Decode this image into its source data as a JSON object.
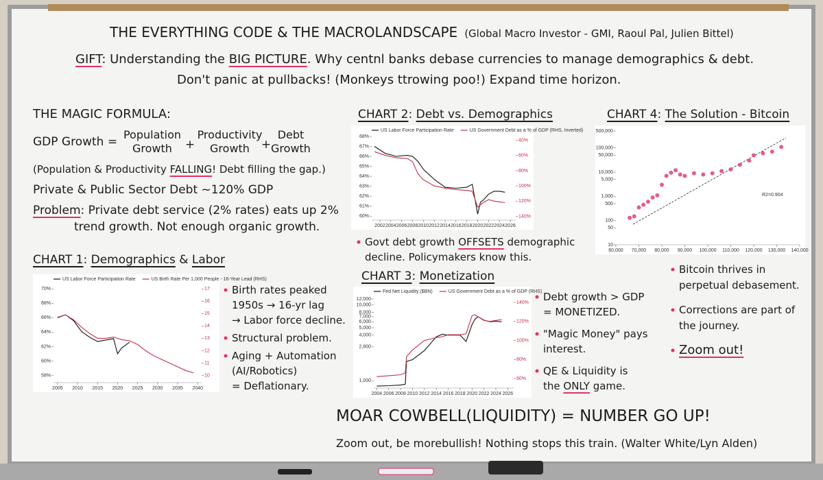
{
  "header": {
    "title": "THE EVERYTHING CODE & THE MACROLANDSCAPE",
    "credit": "(Global Macro Investor - GMI, Raoul Pal, Julien Bittel)",
    "gift": [
      "GIFT",
      ": Understanding the ",
      "BIG PICTURE",
      ". Why centnl banks debase currencies to manage demographics & debt."
    ],
    "line2": "Don't panic at pullbacks! (Monkeys ttrowing poo!) Expand time horizon."
  },
  "magic_formula": {
    "heading": "THE MAGIC FORMULA:",
    "lhs": "GDP Growth =",
    "terms": [
      [
        "Population",
        "Growth"
      ],
      [
        "Productivity",
        "Growth"
      ],
      [
        "Debt",
        "Growth"
      ]
    ],
    "operators": [
      "+",
      "+"
    ],
    "note": [
      "(Population & Productivity ",
      "FALLING",
      "! Debt filling the gap.)"
    ],
    "debt": "Private & Public Sector Debt ~120% GDP",
    "problem": {
      "line1": [
        "Problem",
        ": Private debt service (2% rates) eats up 2%"
      ],
      "line2": "trend growth. Not enough organic growth."
    }
  },
  "sections": [
    {
      "heading": [
        "CHART 1",
        ": ",
        "Demographics",
        " & ",
        "Labor"
      ],
      "bullets": [
        [
          [
            "Birth rates peaked"
          ],
          [
            "1950s → 16-yr lag"
          ],
          [
            "→ Labor force decline."
          ]
        ],
        [
          [
            "Structural problem."
          ]
        ],
        [
          [
            "Aging + Automation"
          ],
          [
            "(AI/Robotics)"
          ],
          [
            "= Deflationary."
          ]
        ]
      ]
    },
    {
      "heading": [
        "CHART 2",
        ": ",
        "Debt vs. Demographics"
      ],
      "bullets": [
        [
          [
            "Govt debt growth ",
            "OFFSETS",
            " demographic"
          ],
          [
            "decline. Policymakers know this."
          ]
        ]
      ]
    },
    {
      "heading": [
        "CHART 3",
        ": ",
        "Monetization"
      ],
      "bullets": [
        [
          [
            "Debt growth > GDP"
          ],
          [
            "= MONETIZED."
          ]
        ],
        [
          [
            "\"Magic Money\" pays"
          ],
          [
            "interest."
          ]
        ],
        [
          [
            "QE & Liquidity is"
          ],
          [
            "the ",
            "ONLY",
            " game."
          ]
        ]
      ]
    },
    {
      "heading": [
        "CHART 4",
        ": ",
        "The Solution - Bitcoin"
      ],
      "bullets": [
        [
          [
            "Bitcoin thrives in"
          ],
          [
            "perpetual debasement."
          ]
        ],
        [
          [
            "Corrections are part of"
          ],
          [
            "the journey."
          ]
        ],
        [
          [
            "Zoom out!"
          ]
        ]
      ]
    }
  ],
  "footer": {
    "headline": "MOAR COWBELL(LIQUIDITY) = NUMBER GO UP!",
    "line": "Zoom out, be morebullish! Nothing stops this train. (Walter White/Lyn Alden)"
  },
  "chart_data": [
    {
      "type": "line",
      "x": [
        2005,
        2007,
        2009,
        2011,
        2013,
        2015,
        2017,
        2019,
        2020,
        2021,
        2023,
        2025,
        2027,
        2029,
        2031,
        2033,
        2035,
        2037,
        2039
      ],
      "series": [
        {
          "name": "US Labor Force Participation Rate",
          "color": "#111111",
          "values": [
            66.0,
            66.4,
            65.6,
            64.1,
            63.3,
            62.7,
            62.9,
            63.1,
            61.0,
            61.8,
            62.6,
            null,
            null,
            null,
            null,
            null,
            null,
            null,
            null
          ]
        },
        {
          "name": "US Birth Rate Per 1,000 People - 16-Year Lead (RHS)",
          "color": "#c0304a",
          "axis": "y2",
          "values": [
            14.7,
            14.9,
            14.5,
            13.9,
            13.4,
            13.0,
            13.0,
            13.1,
            13.0,
            12.9,
            12.8,
            12.5,
            12.0,
            11.6,
            11.3,
            11.0,
            10.7,
            10.4,
            10.2
          ]
        }
      ],
      "xlim": [
        2004,
        2041
      ],
      "xticks": [
        2005,
        2010,
        2015,
        2020,
        2025,
        2030,
        2035,
        2040
      ],
      "ylim": [
        57,
        70.5
      ],
      "yticks": [
        {
          "value": 58,
          "label": "58%"
        },
        {
          "value": 60,
          "label": "60%"
        },
        {
          "value": 62,
          "label": "62%"
        },
        {
          "value": 64,
          "label": "64%"
        },
        {
          "value": 66,
          "label": "66%"
        },
        {
          "value": 68,
          "label": "68%"
        },
        {
          "value": 70,
          "label": "70%"
        }
      ],
      "y2lim": [
        9.42,
        17.29
      ],
      "y2ticks": [
        10,
        11,
        12,
        13,
        14,
        15,
        16,
        17
      ]
    },
    {
      "type": "line",
      "x": [
        2001,
        2003,
        2005,
        2007,
        2008,
        2009,
        2010,
        2012,
        2014,
        2016,
        2018,
        2019,
        2020,
        2020.5,
        2021,
        2022,
        2023,
        2024,
        2025
      ],
      "series": [
        {
          "name": "US Labor Force Participation Rate",
          "color": "#111111",
          "values": [
            67.0,
            66.3,
            66.0,
            66.1,
            66.0,
            65.5,
            64.7,
            63.7,
            62.9,
            62.8,
            62.9,
            63.2,
            60.2,
            61.4,
            61.6,
            62.2,
            62.5,
            62.5,
            62.4
          ]
        },
        {
          "name": "US Government Debt as a % of GDP (RHS, Inverted)",
          "color": "#c0304a",
          "axis": "y2",
          "values": [
            55,
            60,
            63,
            64,
            68,
            84,
            92,
            100,
            103,
            105,
            106,
            107,
            128,
            125,
            122,
            118,
            120,
            121,
            122
          ]
        }
      ],
      "xlim": [
        2000.5,
        2027
      ],
      "xticks": [
        2002,
        2004,
        2006,
        2008,
        2010,
        2012,
        2014,
        2016,
        2018,
        2020,
        2022,
        2024,
        2026
      ],
      "ylim": [
        59.6,
        68
      ],
      "yticks": [
        {
          "value": 60,
          "label": "60%"
        },
        {
          "value": 61,
          "label": "61%"
        },
        {
          "value": 62,
          "label": "62%"
        },
        {
          "value": 63,
          "label": "63%"
        },
        {
          "value": 64,
          "label": "64%"
        },
        {
          "value": 65,
          "label": "65%"
        },
        {
          "value": 66,
          "label": "66%"
        },
        {
          "value": 67,
          "label": "67%"
        },
        {
          "value": 68,
          "label": "68%"
        }
      ],
      "y2lim": [
        145,
        35
      ],
      "y2ticks": [
        {
          "value": 40,
          "label": "40%"
        },
        {
          "value": 60,
          "label": "60%"
        },
        {
          "value": 80,
          "label": "80%"
        },
        {
          "value": 100,
          "label": "100%"
        },
        {
          "value": 120,
          "label": "120%"
        },
        {
          "value": 140,
          "label": "140%"
        }
      ]
    },
    {
      "type": "line",
      "x": [
        2004,
        2006,
        2008,
        2008.8,
        2009,
        2010,
        2012,
        2014,
        2015,
        2016,
        2018,
        2019,
        2020,
        2020.5,
        2021,
        2022,
        2023,
        2024,
        2025
      ],
      "series": [
        {
          "name": "Fed Net Liquidity ($BN)",
          "color": "#111111",
          "values": [
            850,
            860,
            880,
            900,
            1800,
            1900,
            2500,
            3800,
            4100,
            4000,
            4000,
            3300,
            5500,
            6500,
            7000,
            6300,
            6000,
            6100,
            6000
          ]
        },
        {
          "name": "US Government Debt as a % of GDP (RHS)",
          "color": "#c0304a",
          "axis": "y2",
          "values": [
            62,
            63,
            64,
            66,
            83,
            90,
            100,
            103,
            104,
            106,
            106,
            107,
            126,
            127,
            125,
            121,
            120,
            121,
            122
          ]
        }
      ],
      "xlim": [
        2003.5,
        2027
      ],
      "xticks": [
        2004,
        2006,
        2008,
        2010,
        2012,
        2014,
        2016,
        2018,
        2020,
        2022,
        2024,
        2026
      ],
      "ylim": [
        800,
        12500
      ],
      "log_y": true,
      "yticks": [
        {
          "value": 1000,
          "label": "1,000"
        },
        {
          "value": 2800,
          "label": "2,800"
        },
        {
          "value": 4000,
          "label": "4,000"
        },
        {
          "value": 5000,
          "label": "5,000"
        },
        {
          "value": 6000,
          "label": "6,000"
        },
        {
          "value": 7000,
          "label": "7,000"
        },
        {
          "value": 8000,
          "label": "8,000"
        },
        {
          "value": 10000,
          "label": "10,000"
        },
        {
          "value": 12000,
          "label": "12,000"
        }
      ],
      "y2lim": [
        50,
        145
      ],
      "y2ticks": [
        {
          "value": 60,
          "label": "60%"
        },
        {
          "value": 80,
          "label": "80%"
        },
        {
          "value": 100,
          "label": "100%"
        },
        {
          "value": 120,
          "label": "120%"
        },
        {
          "value": 140,
          "label": "140%"
        }
      ]
    },
    {
      "type": "scatter",
      "color": "#e0407a",
      "x": [
        66000,
        68000,
        70000,
        72000,
        74000,
        76000,
        78000,
        80000,
        82000,
        84000,
        86000,
        88000,
        90000,
        94000,
        98000,
        102000,
        106000,
        110000,
        114000,
        118000,
        120000,
        124000,
        128000,
        132000
      ],
      "values": [
        130,
        150,
        350,
        450,
        600,
        900,
        1100,
        3000,
        7000,
        9500,
        12000,
        8000,
        7000,
        9000,
        8000,
        9000,
        11000,
        13000,
        20000,
        30000,
        50000,
        60000,
        70000,
        110000
      ],
      "annotation": "R2=0.904",
      "xlim": [
        60000,
        140000
      ],
      "xticks": [
        {
          "value": 60000,
          "label": "60,000"
        },
        {
          "value": 70000,
          "label": "70,000"
        },
        {
          "value": 80000,
          "label": "80,000"
        },
        {
          "value": 90000,
          "label": "90,000"
        },
        {
          "value": 100000,
          "label": "100,000"
        },
        {
          "value": 110000,
          "label": "110,000"
        },
        {
          "value": 120000,
          "label": "120,000"
        },
        {
          "value": 130000,
          "label": "130,000"
        },
        {
          "value": 140000,
          "label": "140,000"
        }
      ],
      "ylim": [
        10,
        500000
      ],
      "log_y": true,
      "yticks": [
        10,
        50,
        100,
        500,
        {
          "value": 1000,
          "label": "1,000"
        },
        {
          "value": 5000,
          "label": "5,000"
        },
        {
          "value": 10000,
          "label": "10,000"
        },
        {
          "value": 50000,
          "label": "50,000"
        },
        {
          "value": 100000,
          "label": "100,000"
        },
        {
          "value": 500000,
          "label": "500,000"
        }
      ]
    }
  ]
}
